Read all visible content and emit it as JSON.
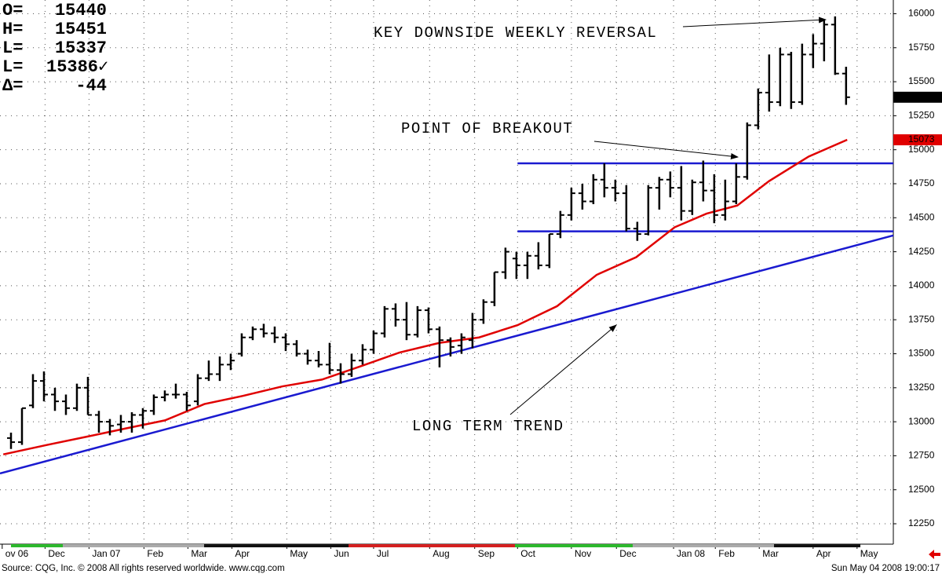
{
  "chart_data": {
    "type": "ohlc",
    "readout": [
      {
        "label": "O=",
        "value": 15440
      },
      {
        "label": "H=",
        "value": 15451
      },
      {
        "label": "L=",
        "value": 15337
      },
      {
        "label": "L=",
        "value": 15386,
        "value_label": "15386✓"
      },
      {
        "label": "Δ=",
        "value": -44
      }
    ],
    "open": [
      12880,
      12850,
      13120,
      13300,
      13200,
      13150,
      13100,
      13250,
      13050,
      13000,
      12980,
      13000,
      13050,
      13080,
      13180,
      13200,
      13200,
      13150,
      13320,
      13350,
      13420,
      13500,
      13620,
      13680,
      13650,
      13620,
      13570,
      13500,
      13450,
      13420,
      13380,
      13350,
      13450,
      13530,
      13650,
      13830,
      13750,
      13640,
      13820,
      13680,
      13600,
      13560,
      13600,
      13750,
      13880,
      14100,
      14200,
      14150,
      14220,
      14150,
      14380,
      14520,
      14680,
      14620,
      14780,
      14720,
      14680,
      14420,
      14380,
      14720,
      14780,
      14720,
      14550,
      14760,
      14700,
      14520,
      14620,
      14800,
      15180,
      15420,
      15350,
      15700,
      15350,
      15700,
      15780,
      15920,
      15560
    ],
    "high": [
      12920,
      13100,
      13350,
      13370,
      13250,
      13200,
      13280,
      13330,
      13080,
      13020,
      13050,
      13070,
      13100,
      13200,
      13230,
      13280,
      13220,
      13350,
      13450,
      13480,
      13500,
      13650,
      13700,
      13720,
      13700,
      13650,
      13600,
      13530,
      13520,
      13580,
      13430,
      13500,
      13570,
      13670,
      13850,
      13870,
      13880,
      13850,
      13840,
      13700,
      13620,
      13650,
      13800,
      13900,
      14100,
      14280,
      14250,
      14250,
      14320,
      14380,
      14550,
      14720,
      14750,
      14820,
      14900,
      14780,
      14740,
      14470,
      14740,
      14800,
      14840,
      14880,
      14780,
      14920,
      14820,
      14780,
      14900,
      15200,
      15450,
      15700,
      15750,
      15720,
      15780,
      15850,
      15950,
      15980,
      15610
    ],
    "low": [
      12800,
      12830,
      13100,
      13150,
      13080,
      13050,
      13080,
      13050,
      12920,
      12900,
      12920,
      12920,
      12950,
      13050,
      13150,
      13170,
      13080,
      13120,
      13300,
      13300,
      13380,
      13480,
      13600,
      13620,
      13580,
      13520,
      13480,
      13420,
      13400,
      13350,
      13280,
      13330,
      13420,
      13500,
      13620,
      13700,
      13600,
      13620,
      13650,
      13400,
      13480,
      13500,
      13540,
      13720,
      13850,
      14050,
      14050,
      14050,
      14120,
      14130,
      14350,
      14480,
      14560,
      14600,
      14650,
      14620,
      14400,
      14330,
      14370,
      14560,
      14650,
      14480,
      14520,
      14620,
      14460,
      14480,
      14600,
      14780,
      15150,
      15280,
      15320,
      15300,
      15330,
      15600,
      15650,
      15550,
      15330
    ],
    "close": [
      12850,
      13100,
      13300,
      13200,
      13150,
      13100,
      13250,
      13050,
      13000,
      12970,
      13000,
      13050,
      13080,
      13180,
      13200,
      13200,
      13120,
      13320,
      13350,
      13420,
      13450,
      13620,
      13680,
      13650,
      13620,
      13570,
      13500,
      13450,
      13420,
      13380,
      13350,
      13450,
      13530,
      13650,
      13830,
      13750,
      13640,
      13820,
      13680,
      13600,
      13550,
      13620,
      13750,
      13880,
      14100,
      14250,
      14150,
      14220,
      14150,
      14380,
      14520,
      14680,
      14620,
      14780,
      14720,
      14680,
      14420,
      14380,
      14720,
      14780,
      14720,
      14550,
      14760,
      14700,
      14520,
      14620,
      14800,
      15180,
      15420,
      15350,
      15700,
      15350,
      15700,
      15780,
      15920,
      15560,
      15386
    ],
    "bar_color": "#000000",
    "moving_average": {
      "color": "#e00000",
      "x": [
        -0.7,
        3.3,
        6.9,
        10.4,
        14,
        17.6,
        21.1,
        24.7,
        28.3,
        31.9,
        35.4,
        39,
        42.6,
        46.1,
        49.7,
        53.3,
        56.9,
        60.4,
        63.3,
        66.1,
        69,
        72.6,
        76.1
      ],
      "values": [
        12760,
        12830,
        12890,
        12950,
        13010,
        13130,
        13190,
        13260,
        13310,
        13410,
        13510,
        13580,
        13620,
        13710,
        13850,
        14080,
        14210,
        14430,
        14530,
        14590,
        14770,
        14950,
        15073
      ]
    },
    "trend_lines": {
      "color": "#1a1ad0",
      "lines": [
        {
          "x": [
            -1,
            80.3
          ],
          "values": [
            12620,
            14370
          ]
        },
        {
          "x": [
            46.1,
            80.3
          ],
          "values": [
            14900,
            14900
          ]
        },
        {
          "x": [
            46.1,
            80.3
          ],
          "values": [
            14400,
            14400
          ]
        }
      ]
    },
    "annotations": [
      "KEY DOWNSIDE WEEKLY REVERSAL",
      "POINT OF BREAKOUT",
      "LONG TERM TREND"
    ],
    "xlim": [
      -1,
      80.3
    ],
    "ylim": [
      12100,
      16020
    ],
    "yticks": [
      12250,
      12500,
      12750,
      13000,
      13250,
      13500,
      13750,
      14000,
      14250,
      14500,
      14750,
      15000,
      15250,
      15500,
      15750,
      16000
    ],
    "xticks": [
      {
        "value": -0.8,
        "label": "ov 06"
      },
      {
        "value": 3.1,
        "label": "Dec"
      },
      {
        "value": 7.1,
        "label": "Jan 07"
      },
      {
        "value": 12.1,
        "label": "Feb"
      },
      {
        "value": 16.1,
        "label": "Mar"
      },
      {
        "value": 20.1,
        "label": "Apr"
      },
      {
        "value": 25.1,
        "label": "May"
      },
      {
        "value": 29.1,
        "label": "Jun"
      },
      {
        "value": 33,
        "label": "Jul"
      },
      {
        "value": 38.1,
        "label": "Aug"
      },
      {
        "value": 42.2,
        "label": "Sep"
      },
      {
        "value": 46.1,
        "label": "Oct"
      },
      {
        "value": 51,
        "label": "Nov"
      },
      {
        "value": 55.1,
        "label": "Dec"
      },
      {
        "value": 60.3,
        "label": "Jan 08"
      },
      {
        "value": 64.1,
        "label": "Feb"
      },
      {
        "value": 68.1,
        "label": "Mar"
      },
      {
        "value": 73,
        "label": "Apr"
      },
      {
        "value": 77,
        "label": "May"
      }
    ],
    "grid": true,
    "source": "Source: CQG, Inc. © 2008 All rights reserved worldwide. www.cqg.com",
    "timestamp": "Sun May 04 2008 19:00:17"
  }
}
